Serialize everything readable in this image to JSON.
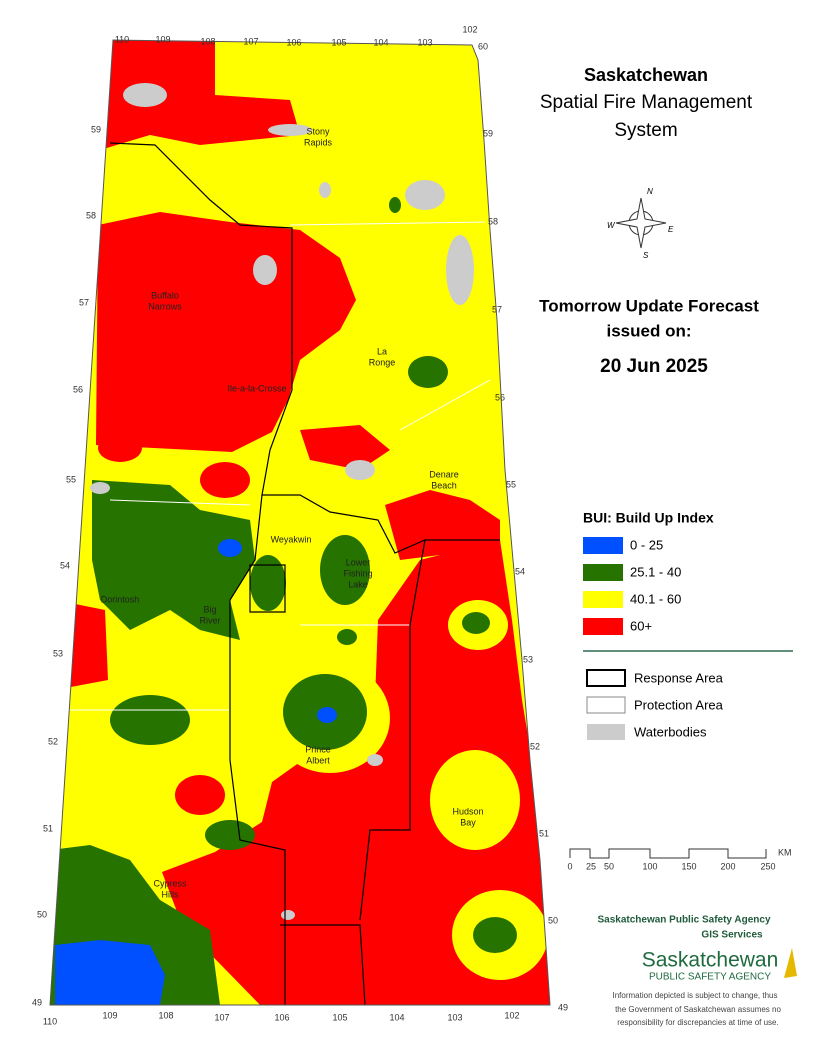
{
  "header": {
    "title": "Saskatchewan",
    "subtitle": [
      "Spatial Fire Management",
      "System"
    ]
  },
  "forecast": {
    "heading": "Tomorrow Update Forecast",
    "issued": "issued on:",
    "date": "20 Jun 2025"
  },
  "compass": [
    "N",
    "E",
    "S",
    "W"
  ],
  "legend": {
    "title": "BUI: Build Up Index",
    "items": [
      {
        "label": "0 - 25",
        "color": "#0050ff"
      },
      {
        "label": "25.1 - 40",
        "color": "#267300"
      },
      {
        "label": "40.1 - 60",
        "color": "#ffff00"
      },
      {
        "label": "60+",
        "color": "#ff0000"
      }
    ],
    "boundaries": [
      {
        "label": "Response Area"
      },
      {
        "label": "Protection Area"
      },
      {
        "label": "Waterbodies",
        "color": "#cccccc"
      }
    ]
  },
  "scale": {
    "ticks": [
      "0",
      "25",
      "50",
      "100",
      "150",
      "200",
      "250"
    ],
    "unit": "KM"
  },
  "agency": {
    "name": "Saskatchewan Public Safety Agency",
    "unit": "GIS  Services",
    "logo": "Saskatchewan",
    "logo_sub": "PUBLIC SAFETY AGENCY",
    "disclaimer": [
      "Information depicted is subject to change, thus",
      "the Government of Saskatchewan assumes no",
      "responsibility for discrepancies at time of use."
    ]
  },
  "places": [
    {
      "lines": [
        "Stony",
        "Rapids"
      ]
    },
    {
      "lines": [
        "Buffalo",
        "Narrows"
      ]
    },
    {
      "lines": [
        "La",
        "Ronge"
      ]
    },
    {
      "lines": [
        "Ile-a-la-Crosse"
      ]
    },
    {
      "lines": [
        "Denare",
        "Beach"
      ]
    },
    {
      "lines": [
        "Weyakwin"
      ]
    },
    {
      "lines": [
        "Lower",
        "Fishing",
        "Lake"
      ]
    },
    {
      "lines": [
        "Dorintosh"
      ]
    },
    {
      "lines": [
        "Big",
        "River"
      ]
    },
    {
      "lines": [
        "Prince",
        "Albert"
      ]
    },
    {
      "lines": [
        "Hudson",
        "Bay"
      ]
    },
    {
      "lines": [
        "Cypress",
        "Hills"
      ]
    }
  ],
  "grid": {
    "top": [
      110,
      109,
      108,
      107,
      106,
      105,
      104,
      103,
      102
    ],
    "bottom": [
      110,
      109,
      108,
      107,
      106,
      105,
      104,
      103,
      102
    ],
    "left": [
      59,
      58,
      57,
      56,
      55,
      54,
      53,
      52,
      51,
      50,
      49
    ],
    "right": [
      60,
      59,
      58,
      57,
      56,
      55,
      54,
      53,
      52,
      51,
      50,
      49
    ]
  }
}
